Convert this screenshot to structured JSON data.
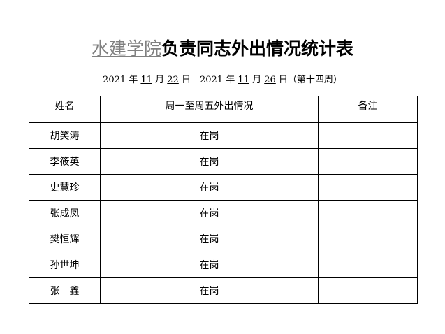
{
  "title": {
    "org": "水建学院",
    "rest": "负责同志外出情况统计表"
  },
  "subtitle": {
    "start_year": "2021",
    "start_month": "11",
    "start_day": "22",
    "end_year": "2021",
    "end_month": "11",
    "end_day": "26",
    "year_label": "年",
    "month_label": "月",
    "day_label": "日",
    "dash": "—",
    "week": "（第十四周）"
  },
  "table": {
    "headers": [
      "姓名",
      "周一至周五外出情况",
      "备注"
    ],
    "rows": [
      {
        "name": "胡笑涛",
        "status": "在岗",
        "note": ""
      },
      {
        "name": "李筱英",
        "status": "在岗",
        "note": ""
      },
      {
        "name": "史慧珍",
        "status": "在岗",
        "note": ""
      },
      {
        "name": "张成凤",
        "status": "在岗",
        "note": ""
      },
      {
        "name": "樊恒辉",
        "status": "在岗",
        "note": ""
      },
      {
        "name": "孙世坤",
        "status": "在岗",
        "note": ""
      },
      {
        "name": "张　鑫",
        "status": "在岗",
        "note": ""
      }
    ]
  }
}
